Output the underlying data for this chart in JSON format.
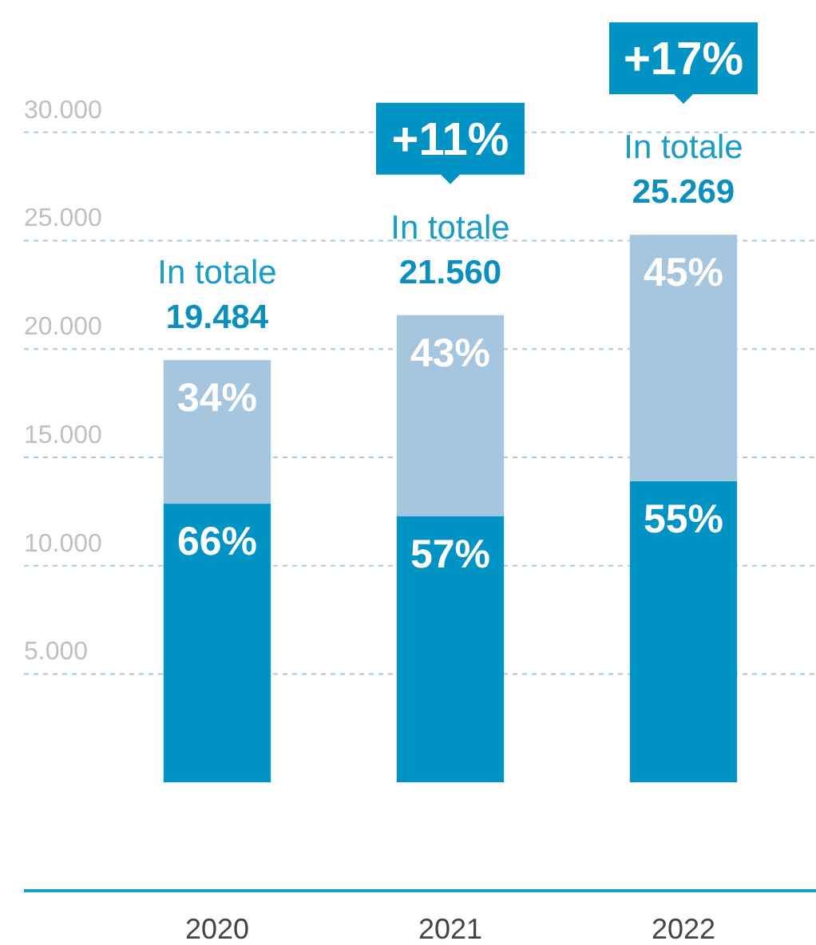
{
  "chart_data": {
    "type": "bar",
    "stacked": true,
    "categories": [
      "2020",
      "2021",
      "2022"
    ],
    "series": [
      {
        "color": "#0093c4",
        "values": [
          12859,
          12289,
          13898
        ]
      },
      {
        "color": "#a6c6e0",
        "values": [
          6625,
          9271,
          11371
        ]
      }
    ],
    "totals": [
      "19.484",
      "21.560",
      "25.269"
    ],
    "annotations": [
      {
        "text": "66%",
        "x": "2020",
        "y": 12859
      },
      {
        "text": "57%",
        "x": "2021",
        "y": 12289
      },
      {
        "text": "55%",
        "x": "2022",
        "y": 13898
      },
      {
        "text": "34%",
        "x": "2020",
        "y": 19484
      },
      {
        "text": "43%",
        "x": "2021",
        "y": 21560
      },
      {
        "text": "45%",
        "x": "2022",
        "y": 25269
      },
      {
        "text": "In totale",
        "x": "2020",
        "y": 19484
      },
      {
        "text": "In totale",
        "x": "2021",
        "y": 21560
      },
      "+11%",
      {
        "text": "In totale",
        "x": "2022",
        "y": 25269
      },
      "+17%"
    ],
    "ylim": [
      -5000,
      36100
    ],
    "yticks": [
      {
        "value": 5000,
        "label": "5.000"
      },
      {
        "value": 10000,
        "label": "10.000"
      },
      {
        "value": 15000,
        "label": "15.000"
      },
      {
        "value": 20000,
        "label": "20.000"
      },
      {
        "value": 25000,
        "label": "25.000"
      },
      {
        "value": 30000,
        "label": "30.000"
      }
    ],
    "grid": "y"
  }
}
